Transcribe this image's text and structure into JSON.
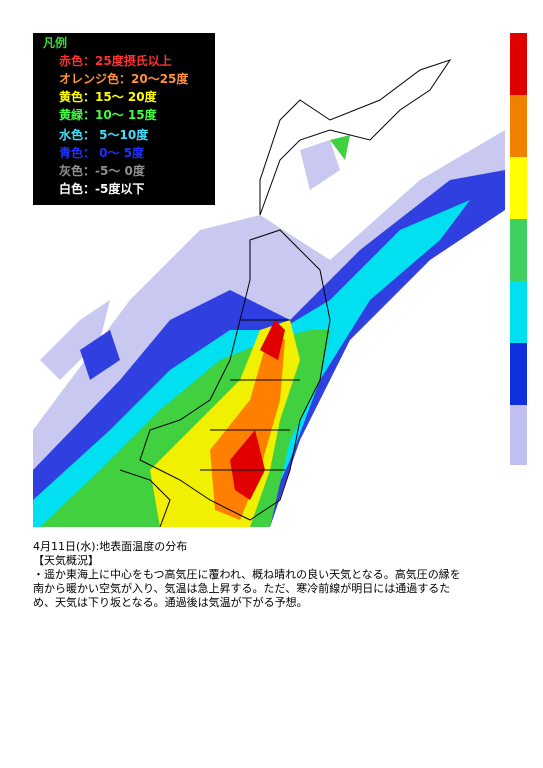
{
  "legend": {
    "title": "凡例",
    "items": [
      "赤色：25度摂氏以上",
      "オレンジ色：20～25度",
      "黄色：15～ 20度",
      "黄緑：10～ 15度",
      "水色： 5～10度",
      "青色： 0～ 5度",
      "灰色：-5～ 0度",
      "白色：-5度以下"
    ]
  },
  "caption": {
    "title": "4月11日(水):地表面温度の分布",
    "heading": "【天気概況】",
    "lines": [
      "・遥か東海上に中心をもつ高気圧に覆われ、概ね晴れの良い天気となる。高気圧の縁を",
      "南から暖かい空気が入り、気温は急上昇する。ただ、寒冷前線が明日には通過するた",
      "め、天気は下り坂となる。通過後は気温が下がる予想。"
    ]
  }
}
